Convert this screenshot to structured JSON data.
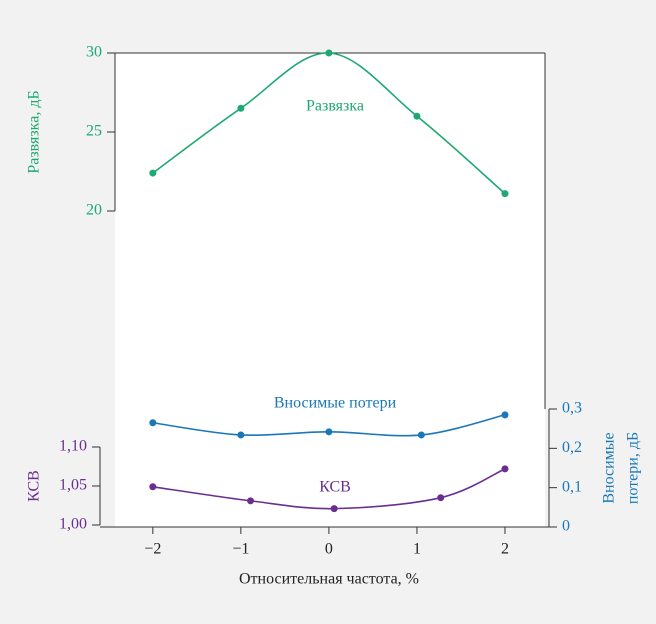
{
  "chart_data": {
    "type": "line",
    "x_label": "Относительная частота, %",
    "y_label": "Развязка, дБ",
    "y2_label": "КСВ",
    "y3_label": [
      "Вносимые",
      "потери, дБ"
    ],
    "xlim": [
      -2.6,
      2.5
    ],
    "xticks": [
      {
        "value": -2,
        "label": "−2"
      },
      {
        "value": -1,
        "label": "−1"
      },
      0,
      1,
      2
    ],
    "ylim": [
      20,
      30
    ],
    "yticks": [
      20,
      25,
      30
    ],
    "y2lim": [
      1.0,
      1.1
    ],
    "y2ticks": [
      {
        "value": 1.0,
        "label": "1,00"
      },
      {
        "value": 1.05,
        "label": "1,05"
      },
      {
        "value": 1.1,
        "label": "1,10"
      }
    ],
    "y3lim": [
      0,
      0.3
    ],
    "y3ticks": [
      0,
      {
        "value": 0.1,
        "label": "0,1"
      },
      {
        "value": 0.2,
        "label": "0,2"
      },
      {
        "value": 0.3,
        "label": "0,3"
      }
    ],
    "series": [
      {
        "name": "Развязка",
        "color": "#1ea873",
        "axis": "y",
        "x": [
          -2,
          -1,
          0,
          1,
          2
        ],
        "values": [
          22.4,
          26.5,
          30,
          26.0,
          21.1
        ]
      },
      {
        "name": "Вносимые потери",
        "color": "#1a78b8",
        "axis": "y3",
        "x": [
          -2,
          -1,
          0,
          1.05,
          2
        ],
        "values": [
          0.265,
          0.234,
          0.242,
          0.234,
          0.285
        ]
      },
      {
        "name": "КСВ",
        "color": "#6a2e90",
        "axis": "y2",
        "x": [
          -2,
          -0.89,
          0.06,
          1.27,
          2
        ],
        "values": [
          1.049,
          1.031,
          1.021,
          1.035,
          1.072
        ]
      }
    ]
  }
}
